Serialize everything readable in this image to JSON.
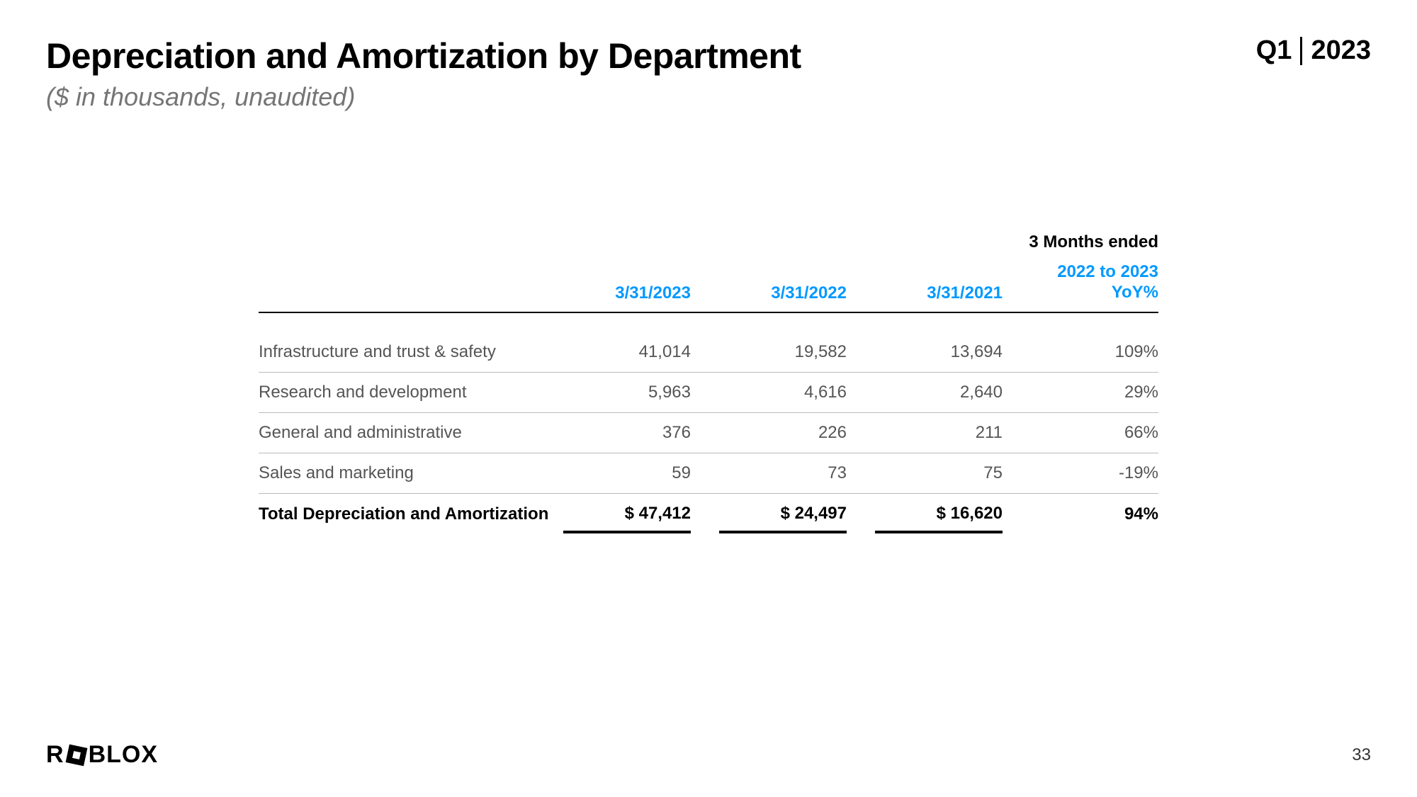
{
  "header": {
    "title": "Depreciation and Amortization by Department",
    "subtitle": "($ in thousands, unaudited)",
    "period_quarter": "Q1",
    "period_year": "2023"
  },
  "table": {
    "supertitle": "3 Months ended",
    "columns": [
      "3/31/2023",
      "3/31/2022",
      "3/31/2021",
      "2022 to 2023 YoY%"
    ],
    "column_header_color": "#0099ff",
    "rows": [
      {
        "label": "Infrastructure and trust & safety",
        "values": [
          "41,014",
          "19,582",
          "13,694",
          "109%"
        ]
      },
      {
        "label": "Research and development",
        "values": [
          "5,963",
          "4,616",
          "2,640",
          "29%"
        ]
      },
      {
        "label": "General and administrative",
        "values": [
          "376",
          "226",
          "211",
          "66%"
        ]
      },
      {
        "label": "Sales and marketing",
        "values": [
          "59",
          "73",
          "75",
          "-19%"
        ]
      }
    ],
    "total": {
      "label": "Total Depreciation and Amortization",
      "values": [
        "$ 47,412",
        "$ 24,497",
        "$ 16,620",
        "94%"
      ]
    }
  },
  "footer": {
    "logo_text_before": "R",
    "logo_text_after": "BLOX",
    "page_number": "33"
  },
  "style": {
    "background_color": "#ffffff",
    "text_color": "#000000",
    "muted_text_color": "#555555",
    "subtitle_color": "#757575",
    "accent_color": "#0099ff",
    "title_fontsize": 50,
    "subtitle_fontsize": 36,
    "table_fontsize": 24
  }
}
